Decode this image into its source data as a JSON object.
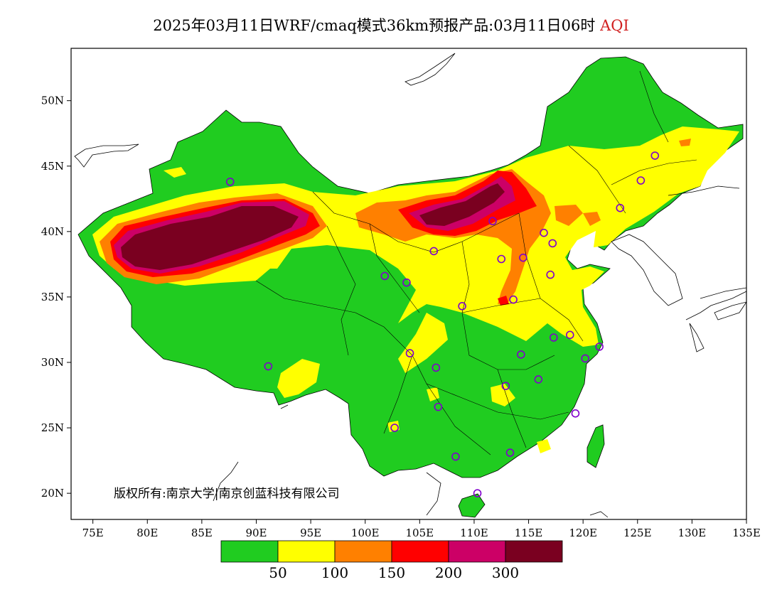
{
  "title": {
    "text": "2025年03月11日WRF/cmaq模式36km预报产品:03月11日06时",
    "highlight": "AQI",
    "highlight_color": "#d12020"
  },
  "axes": {
    "lat_ticks": [
      "50N",
      "45N",
      "40N",
      "35N",
      "30N",
      "25N",
      "20N"
    ],
    "lon_ticks": [
      "75E",
      "80E",
      "85E",
      "90E",
      "95E",
      "100E",
      "105E",
      "110E",
      "115E",
      "120E",
      "125E",
      "130E",
      "135E"
    ],
    "lat_range": [
      18,
      54
    ],
    "lon_range": [
      73,
      135
    ]
  },
  "copyright": "版权所有:南京大学|南京创蓝科技有限公司",
  "legend": {
    "colors": [
      "#20cc20",
      "#ffff00",
      "#ff8000",
      "#ff0000",
      "#cc0066",
      "#7a0020"
    ],
    "labels": [
      "50",
      "100",
      "150",
      "200",
      "300"
    ]
  },
  "map_colors": {
    "good": "#20cc20",
    "moderate": "#ffff00",
    "sensitive": "#ff8000",
    "unhealthy": "#ff0000",
    "very_unhealthy": "#cc0066",
    "hazardous": "#7a0020",
    "station_marker": "#8000cc"
  },
  "stations": [
    {
      "lon": 87.6,
      "lat": 43.8
    },
    {
      "lon": 101.8,
      "lat": 36.6
    },
    {
      "lon": 103.8,
      "lat": 36.1
    },
    {
      "lon": 106.3,
      "lat": 38.5
    },
    {
      "lon": 111.7,
      "lat": 40.8
    },
    {
      "lon": 116.4,
      "lat": 39.9
    },
    {
      "lon": 117.2,
      "lat": 39.1
    },
    {
      "lon": 114.5,
      "lat": 38.0
    },
    {
      "lon": 112.5,
      "lat": 37.9
    },
    {
      "lon": 117.0,
      "lat": 36.7
    },
    {
      "lon": 113.6,
      "lat": 34.8
    },
    {
      "lon": 108.9,
      "lat": 34.3
    },
    {
      "lon": 104.1,
      "lat": 30.7
    },
    {
      "lon": 106.5,
      "lat": 29.6
    },
    {
      "lon": 91.1,
      "lat": 29.7
    },
    {
      "lon": 102.7,
      "lat": 25.0
    },
    {
      "lon": 106.7,
      "lat": 26.6
    },
    {
      "lon": 108.3,
      "lat": 22.8
    },
    {
      "lon": 113.3,
      "lat": 23.1
    },
    {
      "lon": 110.3,
      "lat": 20.0
    },
    {
      "lon": 112.9,
      "lat": 28.2
    },
    {
      "lon": 115.9,
      "lat": 28.7
    },
    {
      "lon": 114.3,
      "lat": 30.6
    },
    {
      "lon": 117.3,
      "lat": 31.9
    },
    {
      "lon": 118.8,
      "lat": 32.1
    },
    {
      "lon": 120.2,
      "lat": 30.3
    },
    {
      "lon": 121.5,
      "lat": 31.2
    },
    {
      "lon": 119.3,
      "lat": 26.1
    },
    {
      "lon": 123.4,
      "lat": 41.8
    },
    {
      "lon": 125.3,
      "lat": 43.9
    },
    {
      "lon": 126.6,
      "lat": 45.8
    }
  ]
}
